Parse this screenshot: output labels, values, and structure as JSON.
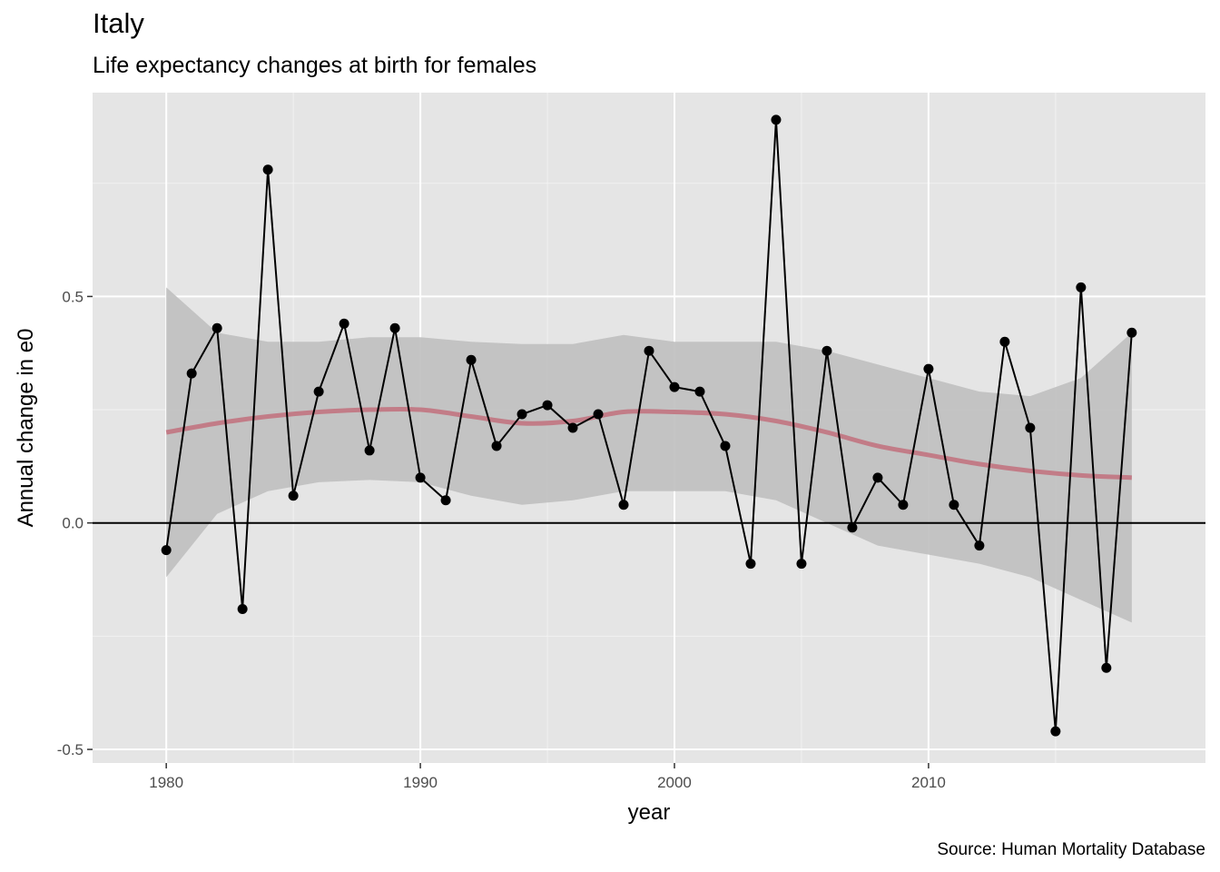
{
  "chart_data": {
    "type": "line",
    "title": "Italy",
    "subtitle": "Life expectancy changes at birth for females",
    "xlabel": "year",
    "ylabel": "Annual change in e0",
    "caption": "Source: Human Mortality Database",
    "xlim": [
      1977.1,
      2020.9
    ],
    "ylim": [
      -0.53,
      0.95
    ],
    "x_ticks": [
      1980,
      1990,
      2000,
      2010
    ],
    "x_tick_labels": [
      "1980",
      "1990",
      "2000",
      "2010"
    ],
    "y_ticks": [
      -0.5,
      0.0,
      0.5
    ],
    "y_tick_labels": [
      "-0.5",
      "0.0",
      "0.5"
    ],
    "grid": true,
    "reference_line": 0,
    "series": [
      {
        "kind": "line_points",
        "color": "#000000",
        "x": [
          1980,
          1981,
          1982,
          1983,
          1984,
          1985,
          1986,
          1987,
          1988,
          1989,
          1990,
          1991,
          1992,
          1993,
          1994,
          1995,
          1996,
          1997,
          1998,
          1999,
          2000,
          2001,
          2002,
          2003,
          2004,
          2005,
          2006,
          2007,
          2008,
          2009,
          2010,
          2011,
          2012,
          2013,
          2014,
          2015,
          2016,
          2017,
          2018
        ],
        "y": [
          -0.06,
          0.33,
          0.43,
          -0.19,
          0.78,
          0.06,
          0.29,
          0.44,
          0.16,
          0.43,
          0.1,
          0.05,
          0.36,
          0.17,
          0.24,
          0.26,
          0.21,
          0.24,
          0.04,
          0.38,
          0.3,
          0.29,
          0.17,
          -0.09,
          0.89,
          -0.09,
          0.38,
          -0.01,
          0.1,
          0.04,
          0.34,
          0.04,
          -0.05,
          0.4,
          0.21,
          -0.46,
          0.52,
          -0.32,
          0.42
        ]
      },
      {
        "kind": "smooth",
        "color": "#c27c87",
        "band_color": "#bfbfbf",
        "x": [
          1980,
          1982,
          1984,
          1986,
          1988,
          1990,
          1992,
          1994,
          1996,
          1998,
          2000,
          2002,
          2004,
          2006,
          2008,
          2010,
          2012,
          2014,
          2016,
          2018
        ],
        "y": [
          0.2,
          0.22,
          0.235,
          0.245,
          0.25,
          0.25,
          0.235,
          0.22,
          0.225,
          0.245,
          0.245,
          0.24,
          0.225,
          0.2,
          0.17,
          0.15,
          0.13,
          0.115,
          0.105,
          0.1
        ],
        "lower": [
          -0.12,
          0.02,
          0.07,
          0.09,
          0.095,
          0.09,
          0.06,
          0.04,
          0.05,
          0.07,
          0.07,
          0.07,
          0.05,
          0.0,
          -0.05,
          -0.07,
          -0.09,
          -0.12,
          -0.17,
          -0.22
        ],
        "upper": [
          0.52,
          0.42,
          0.4,
          0.4,
          0.41,
          0.41,
          0.4,
          0.395,
          0.395,
          0.415,
          0.4,
          0.4,
          0.4,
          0.38,
          0.35,
          0.32,
          0.29,
          0.28,
          0.32,
          0.42
        ]
      }
    ]
  }
}
